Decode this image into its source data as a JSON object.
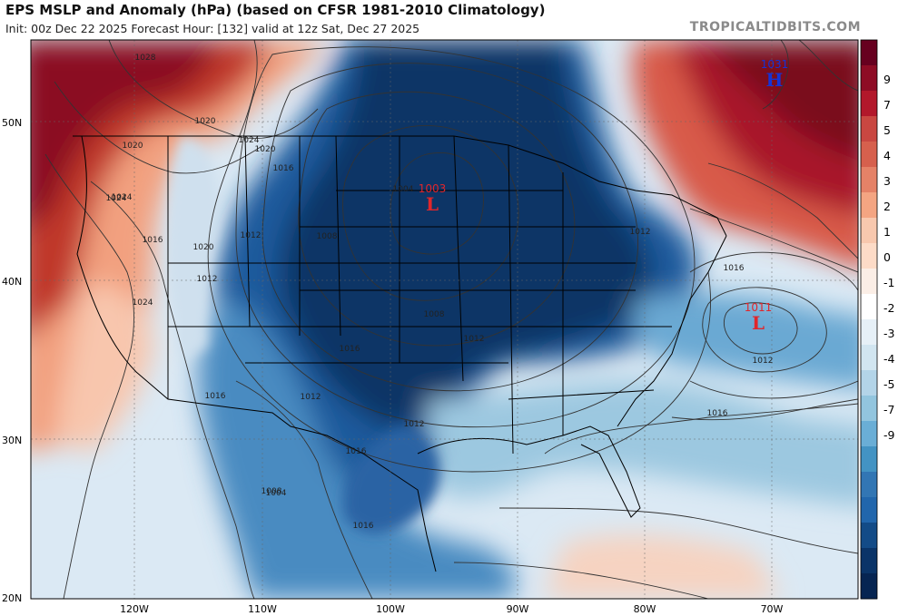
{
  "header": {
    "title": "EPS MSLP and Anomaly (hPa) (based on CFSR 1981-2010 Climatology)",
    "subtitle": "Init: 00z Dec 22 2025   Forecast Hour: [132]   valid at 12z Sat, Dec 27 2025",
    "credit": "TROPICALTIDBITS.COM"
  },
  "colorbar": {
    "labels": [
      "9",
      "7",
      "5",
      "4",
      "3",
      "2",
      "1",
      "0",
      "-1",
      "-2",
      "-3",
      "-4",
      "-5",
      "-7",
      "-9"
    ],
    "colors": [
      "#67001f",
      "#8e0c25",
      "#b2182b",
      "#c94741",
      "#d6604d",
      "#e58267",
      "#f4a582",
      "#f8c8ae",
      "#fddbc7",
      "#fbeee6",
      "#ffffff",
      "#e6f0f7",
      "#d1e5f0",
      "#b3d4e8",
      "#92c5de",
      "#6aaed6",
      "#4393c3",
      "#3276b4",
      "#2166ac",
      "#134b87",
      "#0a3468",
      "#062552"
    ]
  },
  "axes": {
    "lat_labels": [
      "50N",
      "40N",
      "30N",
      "20N"
    ],
    "lon_labels": [
      "120W",
      "110W",
      "100W",
      "90W",
      "80W",
      "70W"
    ]
  },
  "centers": [
    {
      "type": "L",
      "value": "1003",
      "color": "#e0262b"
    },
    {
      "type": "L",
      "value": "1011",
      "color": "#e0262b"
    },
    {
      "type": "H",
      "value": "1031",
      "color": "#1533d6"
    }
  ],
  "isobar_labels": [
    "1024",
    "1020",
    "1016",
    "1012",
    "1008",
    "1004",
    "1008",
    "1012",
    "1016",
    "1020",
    "1024",
    "1028",
    "1012",
    "1016",
    "1020",
    "1024",
    "1024",
    "1020",
    "1016",
    "1012",
    "1016",
    "1016",
    "1012",
    "1012",
    "1012",
    "1016",
    "1016",
    "1008",
    "1004"
  ]
}
